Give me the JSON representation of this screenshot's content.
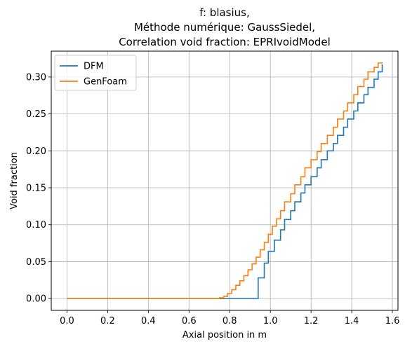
{
  "chart_data": {
    "type": "line",
    "title_lines": [
      "f: blasius,",
      "Méthode numérique: GaussSiedel,",
      "Correlation void fraction: EPRIvoidModel"
    ],
    "xlabel": "Axial position in m",
    "ylabel": "Void fraction",
    "xlim": [
      -0.0775,
      1.6275
    ],
    "ylim": [
      -0.016,
      0.335
    ],
    "x_ticks": [
      0.0,
      0.2,
      0.4,
      0.6,
      0.8,
      1.0,
      1.2,
      1.4,
      1.6
    ],
    "x_tick_labels": [
      "0.0",
      "0.2",
      "0.4",
      "0.6",
      "0.8",
      "1.0",
      "1.2",
      "1.4",
      "1.6"
    ],
    "y_ticks": [
      0.0,
      0.05,
      0.1,
      0.15,
      0.2,
      0.25,
      0.3
    ],
    "y_tick_labels": [
      "0.00",
      "0.05",
      "0.10",
      "0.15",
      "0.20",
      "0.25",
      "0.30"
    ],
    "grid": true,
    "legend_position": "upper-left",
    "step_style": "post",
    "series": [
      {
        "name": "DFM",
        "color": "#1f77b4",
        "x": [
          0.0,
          0.94,
          0.97,
          0.99,
          1.02,
          1.05,
          1.07,
          1.1,
          1.12,
          1.15,
          1.17,
          1.2,
          1.23,
          1.25,
          1.28,
          1.31,
          1.33,
          1.36,
          1.38,
          1.41,
          1.43,
          1.46,
          1.48,
          1.51,
          1.53,
          1.55
        ],
        "y": [
          0.0,
          0.028,
          0.048,
          0.064,
          0.079,
          0.093,
          0.107,
          0.119,
          0.131,
          0.143,
          0.154,
          0.165,
          0.177,
          0.188,
          0.2,
          0.21,
          0.221,
          0.232,
          0.243,
          0.254,
          0.265,
          0.276,
          0.286,
          0.297,
          0.307,
          0.317
        ]
      },
      {
        "name": "GenFoam",
        "color": "#ff7f0e",
        "x": [
          0.0,
          0.75,
          0.77,
          0.79,
          0.81,
          0.83,
          0.85,
          0.87,
          0.89,
          0.91,
          0.93,
          0.95,
          0.97,
          0.99,
          1.01,
          1.03,
          1.05,
          1.07,
          1.1,
          1.12,
          1.15,
          1.17,
          1.2,
          1.23,
          1.25,
          1.28,
          1.31,
          1.33,
          1.36,
          1.38,
          1.41,
          1.43,
          1.46,
          1.48,
          1.51,
          1.53,
          1.55
        ],
        "y": [
          0.0,
          0.001,
          0.003,
          0.007,
          0.012,
          0.018,
          0.024,
          0.031,
          0.039,
          0.047,
          0.056,
          0.066,
          0.076,
          0.087,
          0.098,
          0.108,
          0.119,
          0.131,
          0.142,
          0.154,
          0.165,
          0.177,
          0.188,
          0.199,
          0.21,
          0.221,
          0.232,
          0.243,
          0.254,
          0.265,
          0.276,
          0.287,
          0.297,
          0.307,
          0.313,
          0.319,
          0.32
        ]
      }
    ]
  }
}
